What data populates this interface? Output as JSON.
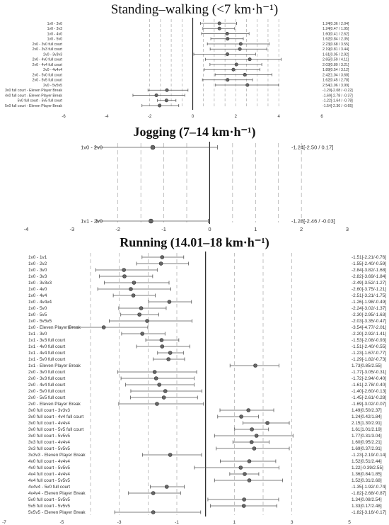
{
  "chart_data": [
    {
      "type": "forest",
      "title": "Standing–walking (<7 km·h⁻¹)",
      "xlim": [
        -6,
        6
      ],
      "xticks": [
        -6,
        -4,
        -2,
        0,
        2,
        4,
        6
      ],
      "rows": [
        {
          "label": "1v0 - 3v0",
          "mean": 1.24,
          "lo": 0.36,
          "hi": 2.04,
          "text": "1.24[0.36 / 2.04]"
        },
        {
          "label": "1v0 - 3v3",
          "mean": 1.24,
          "lo": 0.47,
          "hi": 1.95,
          "text": "1.24[0.47 / 1.95]"
        },
        {
          "label": "1v0 - 4v0",
          "mean": 1.6,
          "lo": 0.41,
          "hi": 2.62,
          "text": "1.60[0.41 / 2.62]"
        },
        {
          "label": "1v0 - 5v0",
          "mean": 1.62,
          "lo": 0.84,
          "hi": 2.35,
          "text": "1.62[0.84 / 2.35]"
        },
        {
          "label": "2v0 - 3v0 full court",
          "mean": 2.23,
          "lo": 0.68,
          "hi": 3.55,
          "text": "2.23[0.68 / 3.55]"
        },
        {
          "label": "2v0 - 3v3 full court",
          "mean": 2.19,
          "lo": 0.81,
          "hi": 3.44,
          "text": "2.19[0.81 / 3.44]"
        },
        {
          "label": "2v0 - 3v3v3",
          "mean": 1.61,
          "lo": 0.05,
          "hi": 2.92,
          "text": "1.61[0.05 / 2.92]"
        },
        {
          "label": "2v0 - 4v0 full court",
          "mean": 2.65,
          "lo": 0.59,
          "hi": 4.11,
          "text": "2.65[0.59 / 4.11]"
        },
        {
          "label": "2v0 - 4v4 full court",
          "mean": 2.03,
          "lo": 0.8,
          "hi": 3.21,
          "text": "2.03[0.80 / 3.21]"
        },
        {
          "label": "2v0 - 4v4v4",
          "mean": 1.89,
          "lo": 0.54,
          "hi": 3.12,
          "text": "1.89[0.54 / 3.12]"
        },
        {
          "label": "2v0 - 5v0 full court",
          "mean": 2.42,
          "lo": 1.04,
          "hi": 3.68,
          "text": "2.42[1.04 / 3.68]"
        },
        {
          "label": "2v0 - 5v5 full court",
          "mean": 1.62,
          "lo": 0.45,
          "hi": 2.78,
          "text": "1.62[0.45 / 2.78]"
        },
        {
          "label": "2v0 - 5v5v5",
          "mean": 2.54,
          "lo": 1.06,
          "hi": 3.99,
          "text": "2.54[1.06 / 3.99]"
        },
        {
          "label": "3v0 full court - Eleven Player Break",
          "mean": -1.2,
          "lo": -2.08,
          "hi": -0.22,
          "text": "-1.20[-2.08 / -0.22]"
        },
        {
          "label": "4v0 full court - Eleven Player Break",
          "mean": -1.69,
          "lo": -2.78,
          "hi": -0.37,
          "text": "-1.69[-2.78 / -0.37]"
        },
        {
          "label": "5v0 full court - 5v5 full court",
          "mean": -1.22,
          "lo": -1.64,
          "hi": -0.78,
          "text": "-1.22[-1.64 / -0.78]"
        },
        {
          "label": "5v0 full court - Eleven Player Break",
          "mean": -1.54,
          "lo": -2.36,
          "hi": -0.65,
          "text": "-1.54[-2.36 / -0.65]"
        }
      ]
    },
    {
      "type": "forest",
      "title": "Jogging (7–14 km·h⁻¹)",
      "xlim": [
        -4,
        3
      ],
      "xticks": [
        -4,
        -3,
        -2,
        -1,
        0,
        1,
        2,
        3
      ],
      "rows": [
        {
          "label": "1v0 - 2v0",
          "mean": -1.24,
          "lo": -2.5,
          "hi": 0.17,
          "text": "-1.24[-2.50 / 0.17]"
        },
        {
          "label": "1v1 - 2v0",
          "mean": -1.28,
          "lo": -2.46,
          "hi": -0.03,
          "text": "-1.28[-2.46 / -0.03]"
        }
      ]
    },
    {
      "type": "forest",
      "title": "Running (14.01–18 km·h⁻¹)",
      "xlim": [
        -7,
        5
      ],
      "xticks": [
        -7,
        -5,
        -3,
        -1,
        1,
        3,
        5
      ],
      "rows": [
        {
          "label": "1v0 - 1v1",
          "mean": -1.51,
          "lo": -2.21,
          "hi": -0.76,
          "text": "-1.51[-2.21/-0.76]"
        },
        {
          "label": "1v0 - 2v2",
          "mean": -1.55,
          "lo": -2.4,
          "hi": -0.59,
          "text": "-1.55[-2.40/-0.59]"
        },
        {
          "label": "1v0 - 3v0",
          "mean": -2.84,
          "lo": -3.82,
          "hi": -1.68,
          "text": "-2.84[-3.82/-1.68]"
        },
        {
          "label": "1v0 - 3v3",
          "mean": -2.82,
          "lo": -3.69,
          "hi": -1.84,
          "text": "-2.82[-3.69/-1.84]"
        },
        {
          "label": "1v0 - 3v3v3",
          "mean": -2.49,
          "lo": -3.52,
          "hi": -1.27,
          "text": "-2.49[-3.52/-1.27]"
        },
        {
          "label": "1v0 - 4v0",
          "mean": -2.6,
          "lo": -3.75,
          "hi": -1.21,
          "text": "-2.60[-3.75/-1.21]"
        },
        {
          "label": "1v0 - 4v4",
          "mean": -2.51,
          "lo": -3.21,
          "hi": -1.75,
          "text": "-2.51[-3.21/-1.75]"
        },
        {
          "label": "1v0 - 4v4v4",
          "mean": -1.26,
          "lo": -1.98,
          "hi": -0.49,
          "text": "-1.26[-1.98/-0.49]"
        },
        {
          "label": "1v0 - 5v0",
          "mean": -2.24,
          "lo": -3.02,
          "hi": -1.37,
          "text": "-2.24[-3.02/-1.37]"
        },
        {
          "label": "1v0 - 5v5",
          "mean": -2.3,
          "lo": -2.95,
          "hi": -1.63,
          "text": "-2.30[-2.95/-1.63]"
        },
        {
          "label": "1v0 - 5v5v5",
          "mean": -2.03,
          "lo": -3.35,
          "hi": -0.47,
          "text": "-2.03[-3.35/-0.47]"
        },
        {
          "label": "1v0 - Eleven Player Break",
          "mean": -3.54,
          "lo": -4.77,
          "hi": -2.01,
          "text": "-3.54[-4.77/-2.01]"
        },
        {
          "label": "1v1 - 3v0",
          "mean": -2.2,
          "lo": -2.92,
          "hi": -1.41,
          "text": "-2.20[-2.92/-1.41]"
        },
        {
          "label": "1v1 - 3v3 full court",
          "mean": -1.53,
          "lo": -2.08,
          "hi": -0.93,
          "text": "-1.53[-2.08/-0.93]"
        },
        {
          "label": "1v1 - 4v0 full court",
          "mean": -1.51,
          "lo": -2.4,
          "hi": -0.55,
          "text": "-1.51[-2.40/-0.55]"
        },
        {
          "label": "1v1 - 4v4 full court",
          "mean": -1.23,
          "lo": -1.67,
          "hi": -0.77,
          "text": "-1.23[-1.67/-0.77]"
        },
        {
          "label": "1v1 - 5v0 full court",
          "mean": -1.29,
          "lo": -1.82,
          "hi": -0.73,
          "text": "-1.29[-1.82/-0.73]"
        },
        {
          "label": "1v1 - Eleven Player Break",
          "mean": 1.73,
          "lo": 0.85,
          "hi": 2.55,
          "text": "1.73[0.85/2.55]"
        },
        {
          "label": "2v0 - 3v0 full court",
          "mean": -1.77,
          "lo": -3.05,
          "hi": -0.31,
          "text": "-1.77[-3.05/-0.31]"
        },
        {
          "label": "2v0 - 3v3 full court",
          "mean": -1.72,
          "lo": -2.94,
          "hi": -0.4,
          "text": "-1.72[-2.94/-0.40]"
        },
        {
          "label": "2v0 - 4v4 full court",
          "mean": -1.61,
          "lo": -2.78,
          "hi": -0.4,
          "text": "-1.61[-2.78/-0.40]"
        },
        {
          "label": "2v0 - 5v0 full court",
          "mean": -1.4,
          "lo": -2.6,
          "hi": -0.13,
          "text": "-1.40[-2.60/-0.13]"
        },
        {
          "label": "2v0 - 5v5 full court",
          "mean": -1.45,
          "lo": -2.61,
          "hi": -0.28,
          "text": "-1.45[-2.61/-0.28]"
        },
        {
          "label": "2v0 - Eleven Player Break",
          "mean": -1.69,
          "lo": -3.02,
          "hi": -0.07,
          "text": "-1.69[-3.02/-0.07]"
        },
        {
          "label": "3v0 full court - 3v3v3",
          "mean": 1.49,
          "lo": 0.5,
          "hi": 2.37,
          "text": "1.49[0.50/2.37]"
        },
        {
          "label": "3v0 full court - 4v4 full court",
          "mean": 1.24,
          "lo": 0.42,
          "hi": 1.84,
          "text": "1.24[0.42/1.84]"
        },
        {
          "label": "3v0 full court - 4v4v4",
          "mean": 2.15,
          "lo": 1.3,
          "hi": 2.91,
          "text": "2.15[1.30/2.91]"
        },
        {
          "label": "3v0 full court - 5v5 full court",
          "mean": 1.61,
          "lo": 1.01,
          "hi": 2.19,
          "text": "1.61[1.01/2.19]"
        },
        {
          "label": "3v0 full court - 5v5v5",
          "mean": 1.77,
          "lo": 0.31,
          "hi": 3.04,
          "text": "1.77[0.31/3.04]"
        },
        {
          "label": "3v3 full court - 4v4v4",
          "mean": 1.6,
          "lo": 0.95,
          "hi": 2.21,
          "text": "1.60[0.95/2.21]"
        },
        {
          "label": "3v3 full court - 5v5v5",
          "mean": 1.69,
          "lo": 0.37,
          "hi": 2.91,
          "text": "1.69[0.37/2.91]"
        },
        {
          "label": "3v3v3 - Eleven Player Break",
          "mean": -1.23,
          "lo": -2.19,
          "hi": -0.14,
          "text": "-1.23[-2.19/-0.14]"
        },
        {
          "label": "4v0 full court - 4v4v4",
          "mean": 1.52,
          "lo": 0.51,
          "hi": 2.44,
          "text": "1.52[0.51/2.44]"
        },
        {
          "label": "4v0 full court - 5v5v5",
          "mean": 1.22,
          "lo": -0.39,
          "hi": 2.55,
          "text": "1.22[-0.39/2.55]"
        },
        {
          "label": "4v4 full court - 4v4v4",
          "mean": 1.36,
          "lo": 0.84,
          "hi": 1.85,
          "text": "1.36[0.84/1.85]"
        },
        {
          "label": "4v4 full court - 5v5v5",
          "mean": 1.52,
          "lo": 0.31,
          "hi": 2.68,
          "text": "1.52[0.31/2.68]"
        },
        {
          "label": "4v4v4 - 5v0 full court",
          "mean": -1.35,
          "lo": -1.92,
          "hi": -0.74,
          "text": "-1.35[-1.92/-0.74]"
        },
        {
          "label": "4v4v4 - Eleven Player Break",
          "mean": -1.82,
          "lo": -2.68,
          "hi": -0.87,
          "text": "-1.82[-2.68/-0.87]"
        },
        {
          "label": "5v0 full court - 5v5v5",
          "mean": 1.34,
          "lo": 0.08,
          "hi": 2.54,
          "text": "1.34[0.08/2.54]"
        },
        {
          "label": "5v5 full court - 5v5v5",
          "mean": 1.33,
          "lo": 0.17,
          "hi": 2.48,
          "text": "1.33[0.17/2.48]"
        },
        {
          "label": "5v5v5 - Eleven Player Break",
          "mean": -1.82,
          "lo": -3.16,
          "hi": -0.17,
          "text": "-1.82[-3.16/-0.17]"
        }
      ]
    }
  ]
}
